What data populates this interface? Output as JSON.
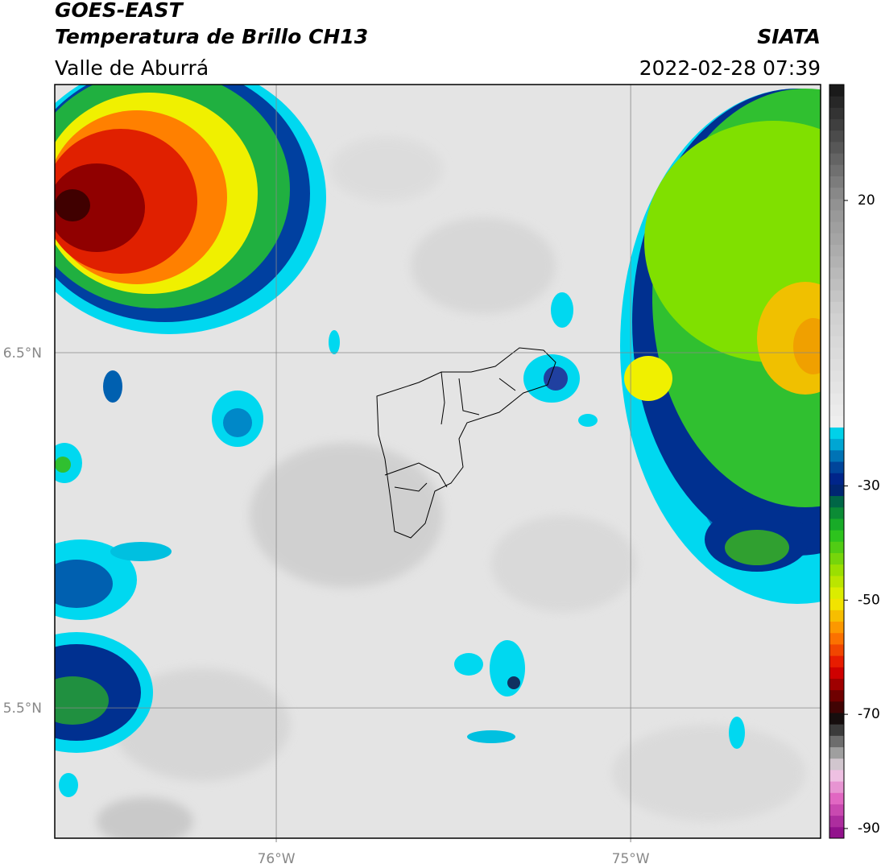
{
  "header": {
    "title": "GOES-EAST",
    "subtitle": "Temperatura de Brillo CH13",
    "region": "Valle de Aburrá",
    "source": "SIATA",
    "datetime": "2022-02-28 07:39"
  },
  "map": {
    "xlim": [
      -76.625,
      -74.464
    ],
    "ylim": [
      5.133,
      7.255
    ],
    "xticks": [
      {
        "value": -76,
        "label": "76°W"
      },
      {
        "value": -75,
        "label": "75°W"
      }
    ],
    "yticks": [
      {
        "value": 6.5,
        "label": "6.5°N"
      },
      {
        "value": 5.5,
        "label": "5.5°N"
      }
    ]
  },
  "colorbar": {
    "lim": [
      -91.7,
      40.3
    ],
    "ticks": [
      20,
      -30,
      -50,
      -70,
      -90
    ]
  }
}
